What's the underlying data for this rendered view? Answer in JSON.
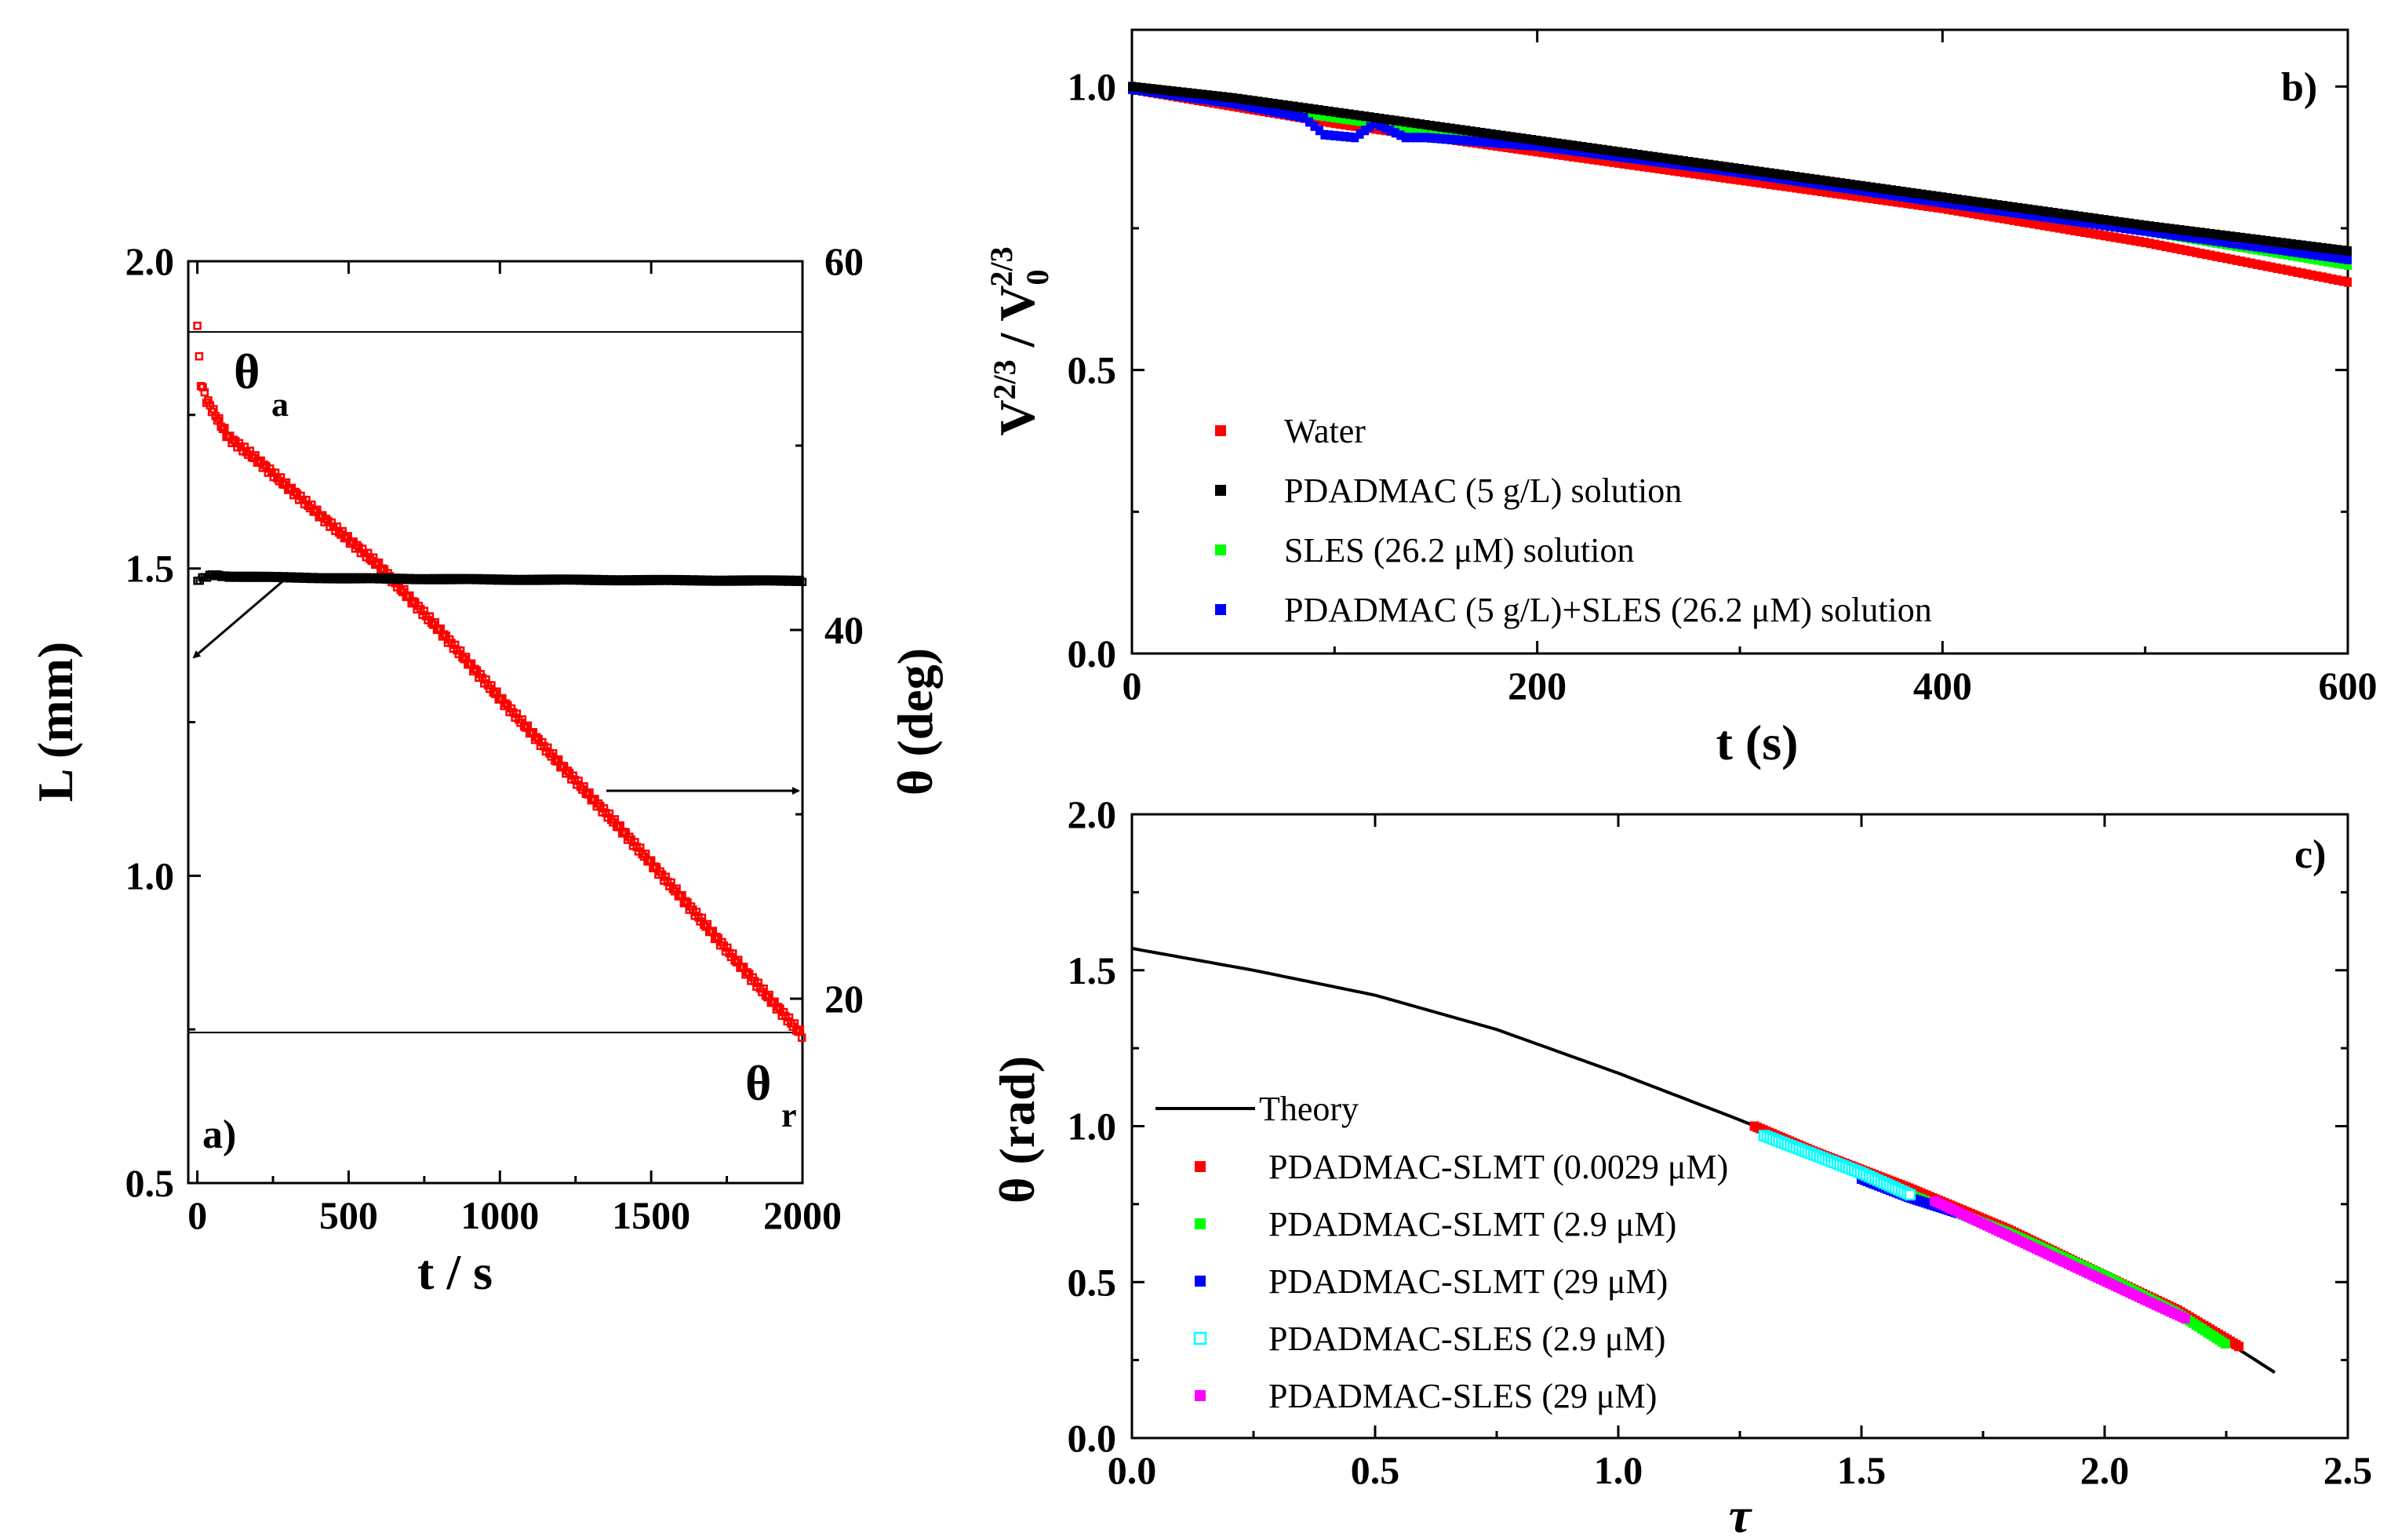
{
  "chart_data": [
    {
      "panel": "a)",
      "type": "scatter",
      "xlabel": "t / s",
      "ylabel": "L (mm)",
      "y2label": "θ (deg)",
      "xlim": [
        -30,
        2000
      ],
      "ylim": [
        0.5,
        2.0
      ],
      "y2lim": [
        10,
        60
      ],
      "xticks": [
        0,
        500,
        1000,
        1500,
        2000
      ],
      "yticks": [
        0.5,
        1.0,
        1.5,
        2.0
      ],
      "y2ticks": [
        20,
        40,
        60
      ],
      "annotations": [
        "θ",
        "a",
        "θ",
        "r"
      ],
      "hlines": [
        1.885,
        0.745
      ],
      "series": [
        {
          "color": "#ff0000",
          "axis": "y2",
          "x": [
            0,
            10,
            30,
            100,
            200,
            400,
            600,
            800,
            1000,
            1200,
            1400,
            1600,
            1800,
            2000
          ],
          "values": [
            56.5,
            53.5,
            52.5,
            50.5,
            49.2,
            46.3,
            43.5,
            40.0,
            36.3,
            32.7,
            29.2,
            25.5,
            21.7,
            18.0
          ]
        },
        {
          "color": "#000000",
          "axis": "y",
          "x": [
            0,
            20,
            50,
            100,
            500,
            1000,
            1500,
            2000
          ],
          "values": [
            1.48,
            1.485,
            1.49,
            1.487,
            1.484,
            1.482,
            1.481,
            1.48
          ]
        }
      ]
    },
    {
      "panel": "b)",
      "type": "scatter",
      "xlabel": "t (s)",
      "ylabel": "V2/3 / V02/3",
      "xlim": [
        0,
        600
      ],
      "ylim": [
        0.0,
        1.1
      ],
      "xticks": [
        0,
        200,
        400,
        600
      ],
      "yticks": [
        0.0,
        0.5,
        1.0
      ],
      "series": [
        {
          "name": "Water",
          "color": "#ff0000",
          "x": [
            0,
            50,
            100,
            200,
            300,
            400,
            500,
            600
          ],
          "values": [
            0.995,
            0.965,
            0.935,
            0.885,
            0.835,
            0.785,
            0.725,
            0.655
          ]
        },
        {
          "name": "PDADMAC (5 g/L) solution",
          "color": "#000000",
          "x": [
            0,
            50,
            100,
            200,
            300,
            400,
            500,
            600
          ],
          "values": [
            1.0,
            0.98,
            0.955,
            0.905,
            0.855,
            0.805,
            0.755,
            0.71
          ]
        },
        {
          "name": "SLES (26.2 μM) solution",
          "color": "#00ff00",
          "x": [
            0,
            50,
            100,
            200,
            300,
            400,
            500,
            600
          ],
          "values": [
            0.995,
            0.97,
            0.945,
            0.895,
            0.848,
            0.795,
            0.745,
            0.685
          ]
        },
        {
          "name": "PDADMAC (5 g/L)+SLES (26.2 μM) solution",
          "color": "#0000ff",
          "x": [
            0,
            50,
            85,
            95,
            110,
            120,
            135,
            145,
            200,
            300,
            400,
            500,
            600
          ],
          "values": [
            0.995,
            0.97,
            0.945,
            0.915,
            0.91,
            0.935,
            0.91,
            0.91,
            0.895,
            0.848,
            0.795,
            0.745,
            0.695
          ]
        }
      ]
    },
    {
      "panel": "c)",
      "type": "scatter",
      "xlabel": "τ",
      "ylabel": "θ (rad)",
      "xlim": [
        0.0,
        2.5
      ],
      "ylim": [
        0.0,
        2.0
      ],
      "xticks": [
        0.0,
        0.5,
        1.0,
        1.5,
        2.0,
        2.5
      ],
      "yticks": [
        0.0,
        0.5,
        1.0,
        1.5,
        2.0
      ],
      "series": [
        {
          "name": "Theory",
          "color": "#000000",
          "style": "line",
          "x": [
            0,
            0.25,
            0.5,
            0.75,
            1.0,
            1.25,
            1.5,
            1.75,
            2.0,
            2.2,
            2.35
          ],
          "values": [
            1.57,
            1.5,
            1.42,
            1.31,
            1.17,
            1.02,
            0.86,
            0.7,
            0.52,
            0.36,
            0.21
          ]
        },
        {
          "name": "PDADMAC-SLMT (0.0029 μM)",
          "color": "#ff0000",
          "style": "filled",
          "x": [
            1.28,
            1.4,
            1.6,
            1.8,
            2.0,
            2.15,
            2.28
          ],
          "values": [
            1.0,
            0.92,
            0.8,
            0.67,
            0.52,
            0.41,
            0.29
          ]
        },
        {
          "name": "PDADMAC-SLMT (2.9 μM)",
          "color": "#00ff00",
          "style": "filled",
          "x": [
            1.6,
            1.8,
            2.0,
            2.15,
            2.25
          ],
          "values": [
            0.78,
            0.66,
            0.52,
            0.4,
            0.3
          ]
        },
        {
          "name": "PDADMAC-SLMT (29 μM)",
          "color": "#0000ff",
          "style": "filled",
          "x": [
            1.5,
            1.6,
            1.7
          ],
          "values": [
            0.83,
            0.77,
            0.72
          ]
        },
        {
          "name": "PDADMAC-SLES (2.9 μM)",
          "color": "#00ffff",
          "style": "open",
          "x": [
            1.3,
            1.4,
            1.5,
            1.6
          ],
          "values": [
            0.97,
            0.91,
            0.85,
            0.78
          ]
        },
        {
          "name": "PDADMAC-SLES (29 μM)",
          "color": "#ff00ff",
          "style": "filled",
          "x": [
            1.65,
            1.8,
            1.95,
            2.1,
            2.17
          ],
          "values": [
            0.76,
            0.65,
            0.54,
            0.43,
            0.38
          ]
        }
      ]
    }
  ]
}
